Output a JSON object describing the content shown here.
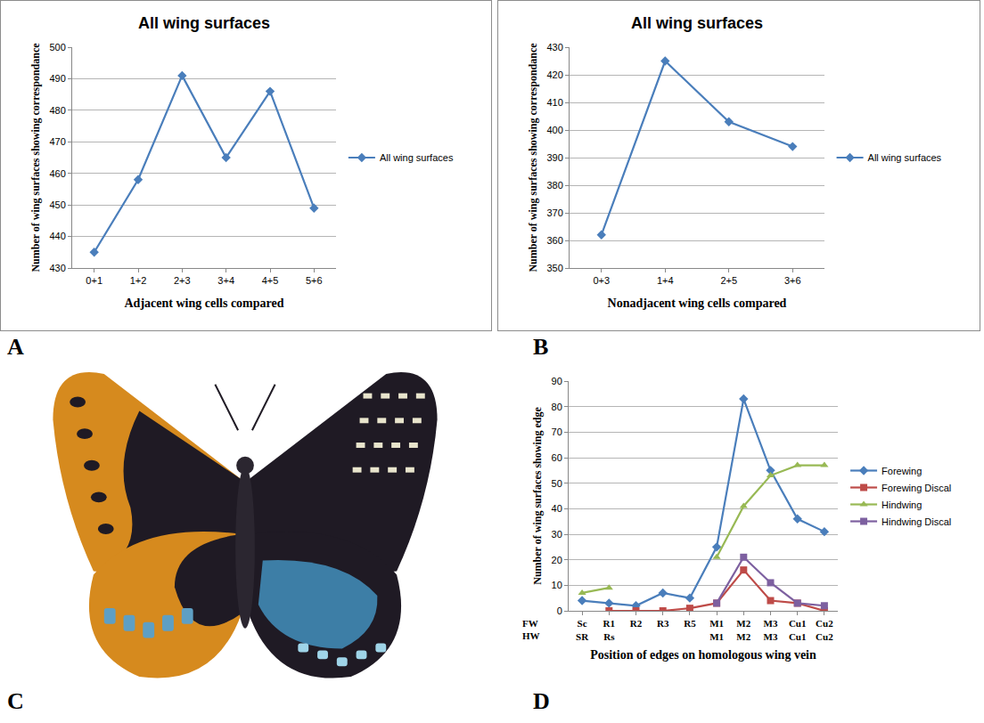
{
  "chart_data": [
    {
      "panel": "A",
      "type": "line",
      "title": "All wing surfaces",
      "x_label": "Adjacent wing cells compared",
      "y_label": "Number of wing surfaces showing correspondance",
      "categories": [
        "0+1",
        "1+2",
        "2+3",
        "3+4",
        "4+5",
        "5+6"
      ],
      "series": [
        {
          "name": "All wing surfaces",
          "color": "#4a7ebb",
          "marker": "diamond",
          "values": [
            435,
            458,
            491,
            465,
            486,
            449
          ]
        }
      ],
      "ylim": [
        430,
        500
      ],
      "yticks": [
        430,
        440,
        450,
        460,
        470,
        480,
        490,
        500
      ],
      "grid": true,
      "legend": "right"
    },
    {
      "panel": "B",
      "type": "line",
      "title": "All wing surfaces",
      "x_label": "Nonadjacent wing cells compared",
      "y_label": "Number of wing surfaces showing correspondance",
      "categories": [
        "0+3",
        "1+4",
        "2+5",
        "3+6"
      ],
      "series": [
        {
          "name": "All wing surfaces",
          "color": "#4a7ebb",
          "marker": "diamond",
          "values": [
            362,
            425,
            403,
            394
          ]
        }
      ],
      "ylim": [
        350,
        430
      ],
      "yticks": [
        350,
        360,
        370,
        380,
        390,
        400,
        410,
        420,
        430
      ],
      "grid": true,
      "legend": "right"
    },
    {
      "panel": "D",
      "type": "line",
      "x_label": "Position of edges on homologous wing vein",
      "y_label": "Number of wing surfaces showing edge",
      "annotations": [
        "FW\nHW"
      ],
      "categories": [
        "Sc\nSR",
        "R1\nRs",
        "R2",
        "R3",
        "R5",
        "M1\nM1",
        "M2\nM2",
        "M3\nM3",
        "Cu1\nCu1",
        "Cu2\nCu2"
      ],
      "series": [
        {
          "name": "Forewing",
          "color": "#4a7ebb",
          "marker": "diamond",
          "values": [
            4,
            3,
            2,
            7,
            5,
            25,
            83,
            55,
            36,
            31
          ]
        },
        {
          "name": "Forewing Discal",
          "color": "#be4b48",
          "marker": "square",
          "values": [
            null,
            0,
            0,
            0,
            1,
            3,
            16,
            4,
            3,
            0
          ]
        },
        {
          "name": "Hindwing",
          "color": "#98b954",
          "marker": "triangle-up",
          "values": [
            7,
            9,
            null,
            null,
            null,
            21,
            41,
            53,
            57,
            57
          ]
        },
        {
          "name": "Hindwing Discal",
          "color": "#7d60a0",
          "marker": "square",
          "values": [
            null,
            null,
            null,
            null,
            null,
            3,
            21,
            11,
            3,
            2
          ]
        }
      ],
      "ylim": [
        0,
        90
      ],
      "yticks": [
        0,
        10,
        20,
        30,
        40,
        50,
        60,
        70,
        80,
        90
      ],
      "grid": true,
      "legend": "right"
    }
  ],
  "photo": {
    "panel": "C"
  }
}
